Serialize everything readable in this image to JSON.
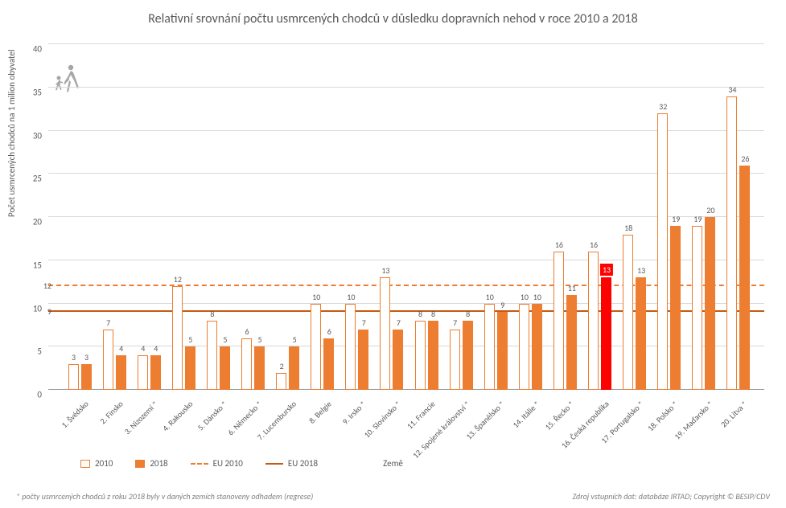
{
  "title": "Relativní srovnání počtu usmrcených chodců v důsledku dopravních nehod v roce 2010 a 2018",
  "y_axis_label": "Počet usmrcených chodců na 1 milion obyvatel",
  "x_axis_label": "Země",
  "y_max": 40,
  "y_tick_step": 5,
  "eu_2010_value": 12,
  "eu_2018_value": 9,
  "highlight_index": 15,
  "colors": {
    "bar_2010_border": "#ed7d31",
    "bar_2010_fill": "#ffffff",
    "bar_2018_fill": "#ed7d31",
    "highlight_fill": "#ff0000",
    "ref_dashed": "#ed7d31",
    "ref_solid": "#c55a11",
    "grid": "#d9d9d9",
    "text": "#595959",
    "icon": "#a6a6a6"
  },
  "countries": [
    {
      "label": "1. Švédsko",
      "v2010": 3,
      "v2018": 3
    },
    {
      "label": "2. Finsko",
      "v2010": 7,
      "v2018": 4
    },
    {
      "label": "3. Nizozemí *",
      "v2010": 4,
      "v2018": 4
    },
    {
      "label": "4. Rakousko",
      "v2010": 12,
      "v2018": 5
    },
    {
      "label": "5. Dánsko *",
      "v2010": 8,
      "v2018": 5
    },
    {
      "label": "6. Německo *",
      "v2010": 6,
      "v2018": 5
    },
    {
      "label": "7. Lucembursko",
      "v2010": 2,
      "v2018": 5
    },
    {
      "label": "8. Belgie",
      "v2010": 10,
      "v2018": 6
    },
    {
      "label": "9. Irsko *",
      "v2010": 10,
      "v2018": 7
    },
    {
      "label": "10. Slovinsko *",
      "v2010": 13,
      "v2018": 7
    },
    {
      "label": "11. Francie",
      "v2010": 8,
      "v2018": 8
    },
    {
      "label": "12. Spojené království *",
      "v2010": 7,
      "v2018": 8
    },
    {
      "label": "13. Španělsko *",
      "v2010": 10,
      "v2018": 9
    },
    {
      "label": "14. Itálie *",
      "v2010": 10,
      "v2018": 10
    },
    {
      "label": "15. Řecko *",
      "v2010": 16,
      "v2018": 11
    },
    {
      "label": "16. Česká republika",
      "v2010": 16,
      "v2018": 13
    },
    {
      "label": "17. Portugalsko *",
      "v2010": 18,
      "v2018": 13
    },
    {
      "label": "18. Polsko *",
      "v2010": 32,
      "v2018": 19
    },
    {
      "label": "19. Maďarsko *",
      "v2010": 19,
      "v2018": 20
    },
    {
      "label": "20. Litva *",
      "v2010": 34,
      "v2018": 26
    }
  ],
  "legend": {
    "s2010": "2010",
    "s2018": "2018",
    "eu2010": "EU 2010",
    "eu2018": "EU 2018"
  },
  "footnote_left": "* počty usmrcených chodců z roku 2018 byly v daných zemích stanoveny odhadem (regrese)",
  "footnote_right": "Zdroj vstupních dat: databáze IRTAD; Copyright © BESIP/CDV"
}
